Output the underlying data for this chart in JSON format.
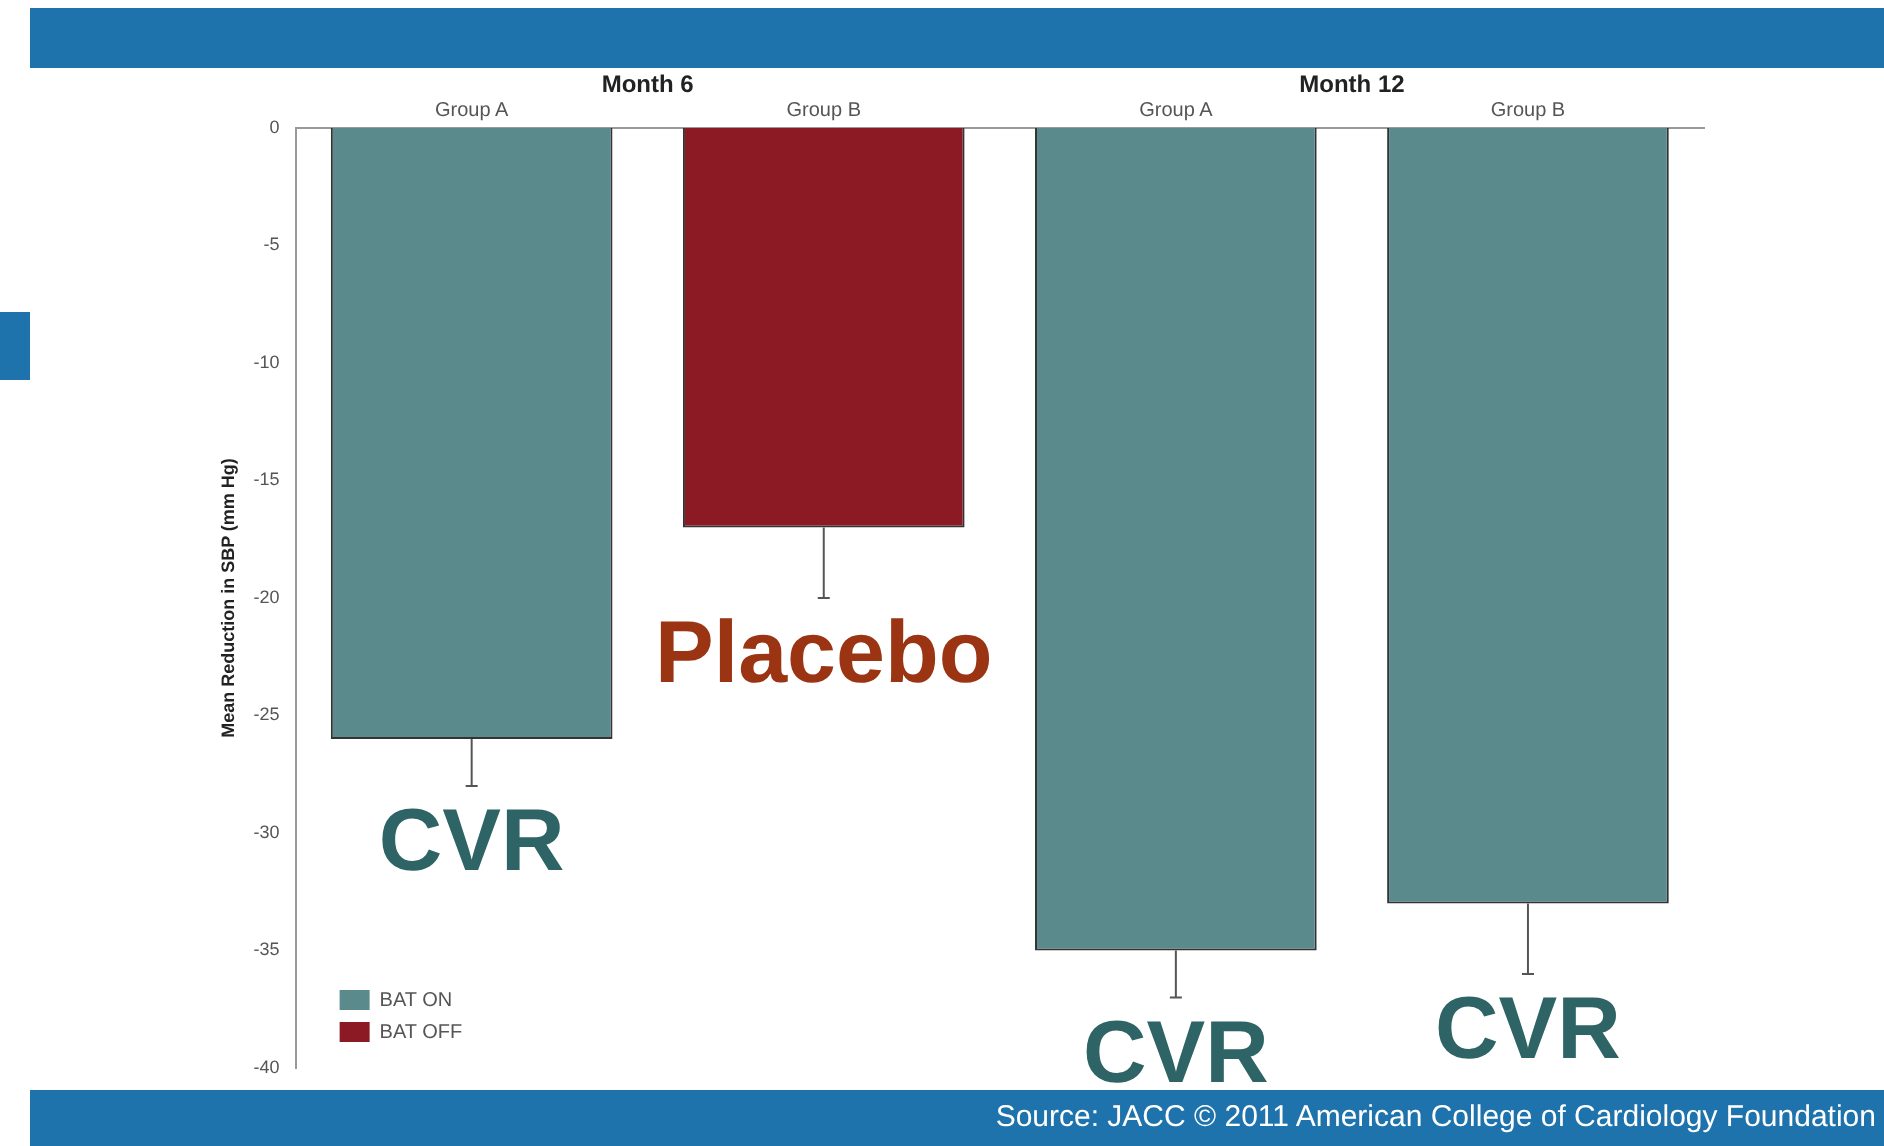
{
  "chart_data": {
    "type": "bar",
    "categories": [
      "Group A",
      "Group B",
      "Group A",
      "Group B"
    ],
    "series": [
      {
        "name": "BAT ON",
        "color": "#5a8a8c",
        "values": [
          -26,
          null,
          -35,
          -33
        ],
        "errors": [
          [
            -28,
            -26
          ],
          null,
          [
            -37,
            -35
          ],
          [
            -36,
            -33
          ]
        ]
      },
      {
        "name": "BAT OFF",
        "color": "#8b1a24",
        "values": [
          null,
          -17,
          null,
          null
        ],
        "errors": [
          null,
          [
            -20,
            -17
          ],
          null,
          null
        ]
      }
    ],
    "ylabel": "Mean Reduction in SBP (mm Hg)",
    "ylim": [
      -40,
      0
    ],
    "yticks": [
      0,
      -5,
      -10,
      -15,
      -20,
      -25,
      -30,
      -35,
      -40
    ],
    "grid": false,
    "legend": "bottom left",
    "annotations": [
      "Month 6",
      "Month 12",
      "CVR",
      "Placebo",
      "CVR",
      "CVR",
      "Source: JACC © 2011 American College of Cardiology Foundation"
    ]
  }
}
